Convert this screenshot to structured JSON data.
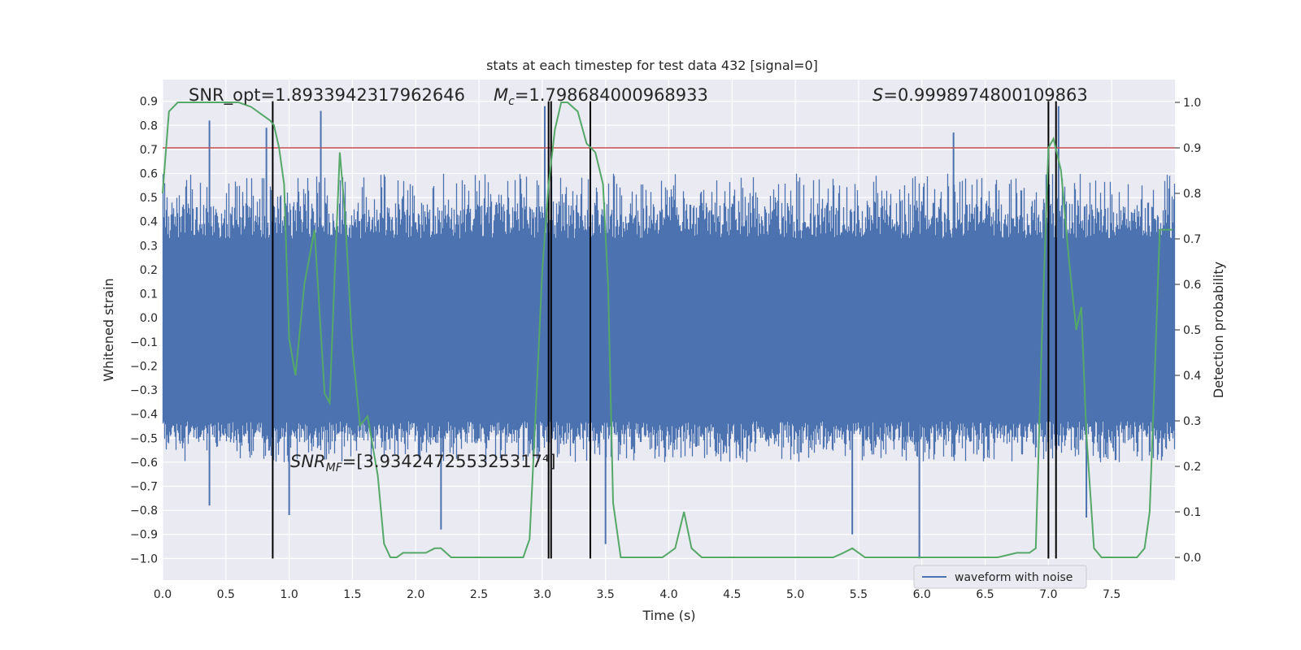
{
  "chart_data": {
    "type": "line",
    "title": "stats at each timestep for test data 432 [signal=0]",
    "xlabel": "Time (s)",
    "ylabel_left": "Whitened strain",
    "ylabel_right": "Detection probability",
    "xlim": [
      0.0,
      8.0
    ],
    "ylim_left": [
      -1.09,
      0.99
    ],
    "ylim_right": [
      -0.05,
      1.05
    ],
    "x_ticks": [
      0.0,
      0.5,
      1.0,
      1.5,
      2.0,
      2.5,
      3.0,
      3.5,
      4.0,
      4.5,
      5.0,
      5.5,
      6.0,
      6.5,
      7.0,
      7.5
    ],
    "x_tick_labels": [
      "0.0",
      "0.5",
      "1.0",
      "1.5",
      "2.0",
      "2.5",
      "3.0",
      "3.5",
      "4.0",
      "4.5",
      "5.0",
      "5.5",
      "6.0",
      "6.5",
      "7.0",
      "7.5"
    ],
    "y_left_ticks": [
      -1.0,
      -0.9,
      -0.8,
      -0.7,
      -0.6,
      -0.5,
      -0.4,
      -0.3,
      -0.2,
      -0.1,
      0.0,
      0.1,
      0.2,
      0.3,
      0.4,
      0.5,
      0.6,
      0.7,
      0.8,
      0.9
    ],
    "y_left_tick_labels": [
      "−1.0",
      "−0.9",
      "−0.8",
      "−0.7",
      "−0.6",
      "−0.5",
      "−0.4",
      "−0.3",
      "−0.2",
      "−0.1",
      "0.0",
      "0.1",
      "0.2",
      "0.3",
      "0.4",
      "0.5",
      "0.6",
      "0.7",
      "0.8",
      "0.9"
    ],
    "y_right_ticks": [
      0.0,
      0.1,
      0.2,
      0.3,
      0.4,
      0.5,
      0.6,
      0.7,
      0.8,
      0.9,
      1.0
    ],
    "y_right_tick_labels": [
      "0.0",
      "0.1",
      "0.2",
      "0.3",
      "0.4",
      "0.5",
      "0.6",
      "0.7",
      "0.8",
      "0.9",
      "1.0"
    ],
    "grid": true,
    "legend": {
      "entries": [
        "waveform with noise"
      ],
      "placement": "lower-right"
    },
    "waveform": {
      "name": "waveform with noise",
      "color": "#4c72b0",
      "core_range": [
        -0.43,
        0.33
      ],
      "envelope_range": [
        -0.6,
        0.6
      ],
      "spikes": [
        {
          "x": 0.37,
          "y": 0.82
        },
        {
          "x": 0.37,
          "y": -0.78
        },
        {
          "x": 0.82,
          "y": 0.79
        },
        {
          "x": 1.0,
          "y": -0.82
        },
        {
          "x": 1.25,
          "y": 0.86
        },
        {
          "x": 2.2,
          "y": -0.88
        },
        {
          "x": 3.02,
          "y": 0.88
        },
        {
          "x": 3.5,
          "y": -0.94
        },
        {
          "x": 5.45,
          "y": -0.9
        },
        {
          "x": 5.98,
          "y": -1.0
        },
        {
          "x": 7.08,
          "y": 0.88
        },
        {
          "x": 7.3,
          "y": -0.83
        },
        {
          "x": 6.25,
          "y": 0.77
        }
      ]
    },
    "probability": {
      "color": "#55a868",
      "x": [
        0.0,
        0.05,
        0.12,
        0.2,
        0.3,
        0.4,
        0.5,
        0.6,
        0.7,
        0.8,
        0.85,
        0.88,
        0.92,
        0.96,
        1.0,
        1.05,
        1.12,
        1.2,
        1.28,
        1.32,
        1.36,
        1.4,
        1.44,
        1.5,
        1.56,
        1.62,
        1.7,
        1.75,
        1.8,
        1.85,
        1.9,
        2.0,
        2.08,
        2.15,
        2.2,
        2.28,
        2.35,
        2.45,
        2.55,
        2.65,
        2.75,
        2.85,
        2.9,
        2.95,
        3.0,
        3.05,
        3.1,
        3.15,
        3.2,
        3.28,
        3.35,
        3.42,
        3.48,
        3.52,
        3.56,
        3.62,
        3.7,
        3.78,
        3.85,
        3.95,
        4.05,
        4.12,
        4.18,
        4.26,
        4.35,
        4.45,
        4.55,
        4.7,
        4.85,
        5.0,
        5.15,
        5.3,
        5.38,
        5.45,
        5.55,
        5.7,
        5.85,
        6.0,
        6.15,
        6.3,
        6.45,
        6.6,
        6.75,
        6.85,
        6.9,
        6.95,
        7.0,
        7.04,
        7.1,
        7.16,
        7.22,
        7.26,
        7.3,
        7.36,
        7.42,
        7.5,
        7.6,
        7.7,
        7.76,
        7.8,
        7.84,
        7.88,
        7.93,
        7.98
      ],
      "y": [
        0.8,
        0.98,
        1.0,
        1.0,
        1.0,
        1.0,
        1.0,
        1.0,
        0.99,
        0.97,
        0.96,
        0.95,
        0.9,
        0.82,
        0.48,
        0.4,
        0.6,
        0.72,
        0.36,
        0.34,
        0.62,
        0.89,
        0.76,
        0.46,
        0.29,
        0.31,
        0.18,
        0.03,
        0.0,
        0.0,
        0.01,
        0.01,
        0.01,
        0.02,
        0.02,
        0.0,
        0.0,
        0.0,
        0.0,
        0.0,
        0.0,
        0.0,
        0.04,
        0.33,
        0.63,
        0.82,
        0.94,
        1.0,
        1.0,
        0.98,
        0.91,
        0.89,
        0.82,
        0.6,
        0.12,
        0.0,
        0.0,
        0.0,
        0.0,
        0.0,
        0.02,
        0.1,
        0.02,
        0.0,
        0.0,
        0.0,
        0.0,
        0.0,
        0.0,
        0.0,
        0.0,
        0.0,
        0.01,
        0.02,
        0.0,
        0.0,
        0.0,
        0.0,
        0.0,
        0.0,
        0.0,
        0.0,
        0.01,
        0.01,
        0.02,
        0.5,
        0.9,
        0.92,
        0.85,
        0.66,
        0.5,
        0.55,
        0.27,
        0.02,
        0.0,
        0.0,
        0.0,
        0.0,
        0.02,
        0.1,
        0.4,
        0.72,
        0.72,
        0.72
      ]
    },
    "threshold": {
      "y_right": 0.9,
      "color": "#c44e52"
    },
    "vlines": [
      {
        "x": 0.87,
        "y_top": 0.9
      },
      {
        "x": 3.05,
        "y_top": 0.9
      },
      {
        "x": 3.07,
        "y_top": 0.9
      },
      {
        "x": 3.38,
        "y_top": 0.9
      },
      {
        "x": 7.0,
        "y_top": 0.9
      },
      {
        "x": 7.06,
        "y_top": 0.9
      }
    ],
    "annotations": {
      "snr_opt": "SNR_opt=1.8933942317962646",
      "mc_symbol": "M",
      "mc_sub": "c",
      "mc_value": "=1.798684000968933",
      "s_symbol": "S",
      "s_value": "=0.9998974800109863",
      "snrmf_symbol": "SNR",
      "snrmf_sub": "MF",
      "snrmf_value": "=[3.934247255325317⁴]"
    }
  }
}
